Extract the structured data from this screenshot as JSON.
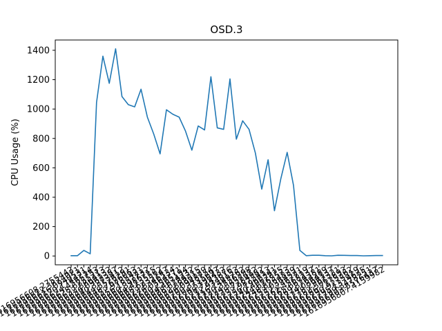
{
  "chart_data": {
    "type": "line",
    "title": "OSD.3",
    "xlabel": "",
    "ylabel": "CPU Usage (%)",
    "ylim": [
      -60,
      1470
    ],
    "yticks": [
      0,
      200,
      400,
      600,
      800,
      1000,
      1200,
      1400
    ],
    "grid": false,
    "line_color": "#1f77b4",
    "series": [
      {
        "values": [
          2,
          2,
          38,
          15,
          1045,
          1360,
          1175,
          1410,
          1085,
          1030,
          1015,
          1135,
          945,
          830,
          695,
          995,
          965,
          945,
          850,
          720,
          885,
          858,
          1220,
          872,
          862,
          1205,
          795,
          920,
          862,
          700,
          455,
          655,
          308,
          525,
          705,
          480,
          38,
          2,
          5,
          5,
          2,
          1,
          5,
          4,
          3,
          3,
          1,
          2,
          3,
          3
        ]
      }
    ],
    "x_tick_labels": [
      "1616956608.2755442",
      "1616956612.3874021",
      "1616956616.0940531",
      "1616956620.1744214",
      "1616956624.4565753",
      "1616956628.6755213",
      "1616956632.8864132",
      "1616956636.0962387",
      "1616956640.3373412",
      "1616956644.5576291",
      "1616956648.7626063",
      "1616956652.9785421",
      "1616956656.1857732",
      "1616956660.3986715",
      "1616956664.4135562",
      "1616956668.6235147",
      "1616956672.8346534",
      "1616956676.0564271",
      "1616956680.2565194",
      "1616956684.4674232",
      "1616956688.6784315",
      "1616956692.8886129",
      "1616956696.0948754",
      "1616956700.3135697",
      "1616956704.5196432",
      "1616956708.7243876",
      "1616956712.9348153",
      "1616956716.1449762",
      "1616956720.3556298",
      "1616956724.5657612",
      "1616956728.7784982",
      "1616956732.9875413",
      "1616956736.1966341",
      "1616956740.4067825",
      "1616956744.6165573",
      "1616956748.8264839",
      "1616956753.0364521",
      "1616956757.2467719",
      "1616956761.4568237",
      "1616956765.6674381",
      "1616956769.8764289",
      "1616956774.0864137",
      "1616956778.2967321",
      "1616956782.5067893",
      "1616956786.7175362",
      "1616956790.9275819",
      "1616956795.1374625",
      "1616956799.3478251",
      "1616956803.5576437",
      "1616956807.4159982"
    ]
  }
}
